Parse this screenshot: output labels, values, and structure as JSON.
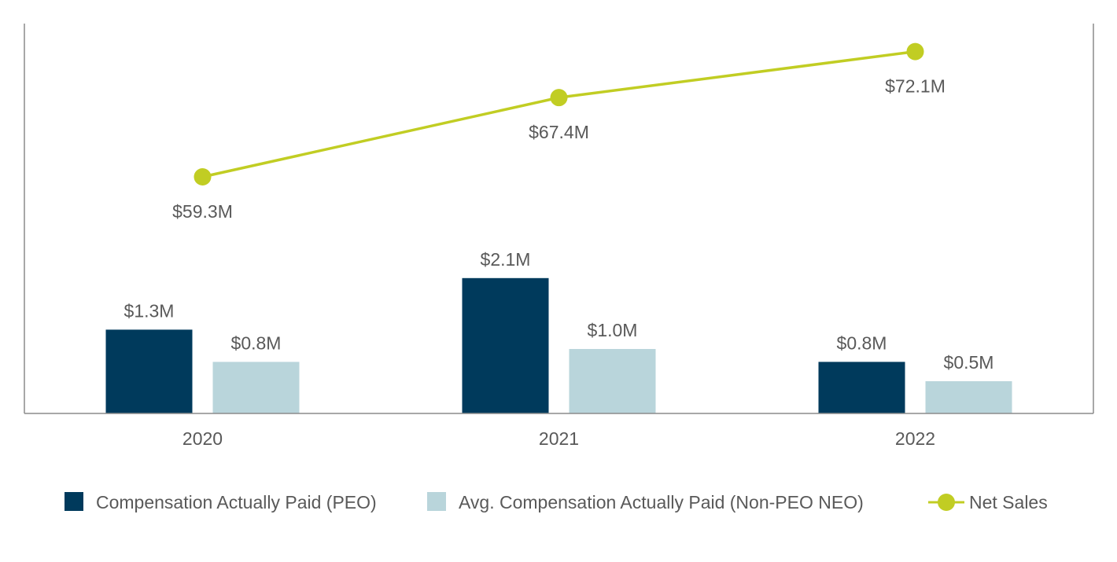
{
  "chart_data": {
    "type": "bar+line",
    "title": "",
    "categories": [
      "2020",
      "2021",
      "2022"
    ],
    "series": [
      {
        "name": "Compensation Actually Paid (PEO)",
        "type": "bar",
        "axis": "primary",
        "color": "#003a5c",
        "values": [
          1.3,
          2.1,
          0.8
        ],
        "labels": [
          "$1.3M",
          "$2.1M",
          "$0.8M"
        ]
      },
      {
        "name": "Avg. Compensation Actually Paid (Non-PEO NEO)",
        "type": "bar",
        "axis": "primary",
        "color": "#b9d5db",
        "values": [
          0.8,
          1.0,
          0.5
        ],
        "labels": [
          "$0.8M",
          "$1.0M",
          "$0.5M"
        ]
      },
      {
        "name": "Net Sales",
        "type": "line",
        "axis": "secondary",
        "color": "#c1cd23",
        "values": [
          59.3,
          67.4,
          72.1
        ],
        "labels": [
          "$59.3M",
          "$67.4M",
          "$72.1M"
        ]
      }
    ],
    "units": "$M",
    "grid": false,
    "legend_position": "bottom"
  }
}
